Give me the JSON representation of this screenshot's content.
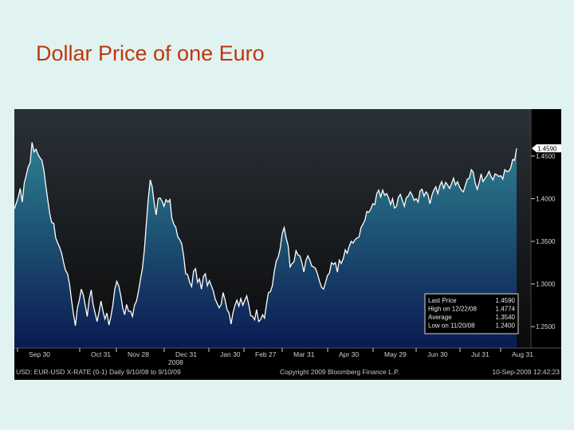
{
  "slide": {
    "title": "Dollar Price of one Euro"
  },
  "chart_data": {
    "type": "area",
    "title": "Dollar Price of one Euro",
    "x_ticks": [
      "Sep 30",
      "Oct 31",
      "Nov 28",
      "Dec 31",
      "Jan 30",
      "Feb 27",
      "Mar 31",
      "Apr 30",
      "May 29",
      "Jun 30",
      "Jul 31",
      "Aug 31"
    ],
    "x_tick_sublabel": {
      "tick": "Dec 31",
      "text": "2008"
    },
    "ylim": [
      1.225,
      1.505
    ],
    "y_ticks": [
      1.25,
      1.3,
      1.35,
      1.4,
      1.45
    ],
    "y_tick_labels": [
      "1.2500",
      "1.3000",
      "1.3500",
      "1.4000",
      "1.4500"
    ],
    "last_price_marker": "1.4590",
    "series": [
      {
        "values": [
          1.388,
          1.395,
          1.402,
          1.412,
          1.396,
          1.418,
          1.427,
          1.437,
          1.442,
          1.466,
          1.455,
          1.458,
          1.452,
          1.448,
          1.445,
          1.433,
          1.415,
          1.398,
          1.382,
          1.372,
          1.371,
          1.354,
          1.348,
          1.343,
          1.336,
          1.325,
          1.316,
          1.312,
          1.3,
          1.282,
          1.265,
          1.251,
          1.272,
          1.281,
          1.294,
          1.287,
          1.275,
          1.262,
          1.282,
          1.293,
          1.276,
          1.266,
          1.256,
          1.267,
          1.28,
          1.268,
          1.259,
          1.266,
          1.252,
          1.262,
          1.275,
          1.294,
          1.303,
          1.298,
          1.287,
          1.272,
          1.264,
          1.276,
          1.268,
          1.268,
          1.262,
          1.275,
          1.28,
          1.291,
          1.305,
          1.318,
          1.34,
          1.37,
          1.4,
          1.422,
          1.414,
          1.395,
          1.381,
          1.4,
          1.401,
          1.397,
          1.391,
          1.399,
          1.396,
          1.399,
          1.377,
          1.37,
          1.366,
          1.355,
          1.352,
          1.347,
          1.332,
          1.312,
          1.311,
          1.302,
          1.297,
          1.315,
          1.318,
          1.302,
          1.306,
          1.294,
          1.309,
          1.312,
          1.298,
          1.304,
          1.298,
          1.292,
          1.282,
          1.277,
          1.272,
          1.276,
          1.29,
          1.281,
          1.27,
          1.266,
          1.253,
          1.266,
          1.275,
          1.281,
          1.274,
          1.283,
          1.275,
          1.281,
          1.286,
          1.276,
          1.263,
          1.262,
          1.258,
          1.27,
          1.256,
          1.258,
          1.264,
          1.26,
          1.276,
          1.29,
          1.291,
          1.298,
          1.315,
          1.327,
          1.332,
          1.342,
          1.359,
          1.366,
          1.354,
          1.345,
          1.32,
          1.324,
          1.326,
          1.339,
          1.334,
          1.333,
          1.325,
          1.314,
          1.327,
          1.333,
          1.328,
          1.321,
          1.32,
          1.318,
          1.311,
          1.303,
          1.296,
          1.294,
          1.302,
          1.31,
          1.313,
          1.325,
          1.323,
          1.325,
          1.314,
          1.328,
          1.324,
          1.33,
          1.34,
          1.336,
          1.344,
          1.35,
          1.348,
          1.352,
          1.354,
          1.355,
          1.366,
          1.37,
          1.375,
          1.385,
          1.384,
          1.388,
          1.394,
          1.393,
          1.406,
          1.41,
          1.402,
          1.41,
          1.404,
          1.406,
          1.401,
          1.393,
          1.4,
          1.389,
          1.391,
          1.402,
          1.405,
          1.398,
          1.391,
          1.401,
          1.403,
          1.408,
          1.404,
          1.398,
          1.4,
          1.396,
          1.409,
          1.411,
          1.403,
          1.408,
          1.405,
          1.394,
          1.404,
          1.41,
          1.414,
          1.406,
          1.415,
          1.42,
          1.412,
          1.419,
          1.416,
          1.412,
          1.418,
          1.424,
          1.416,
          1.42,
          1.414,
          1.41,
          1.408,
          1.416,
          1.423,
          1.424,
          1.434,
          1.431,
          1.418,
          1.411,
          1.419,
          1.429,
          1.42,
          1.424,
          1.427,
          1.432,
          1.426,
          1.422,
          1.429,
          1.428,
          1.426,
          1.427,
          1.423,
          1.434,
          1.432,
          1.432,
          1.436,
          1.446,
          1.445,
          1.459
        ]
      }
    ],
    "legend": {
      "placement": "bottom-right",
      "rows": [
        {
          "label": "Last Price",
          "value": "1.4590"
        },
        {
          "label": "High on 12/22/08",
          "value": "1.4774"
        },
        {
          "label": "Average",
          "value": "1.3540"
        },
        {
          "label": "Low on 11/20/08",
          "value": "1.2400"
        }
      ]
    },
    "footer": {
      "left": "USD: EUR-USD X-RATE (0-1) Daily 9/10/08 to 9/10/09",
      "center": "Copyright 2009 Bloomberg Finance L.P.",
      "right": "10-Sep-2009 12:42:23"
    },
    "colors": {
      "background": "#000000",
      "fill_top": "#2d7f92",
      "fill_bottom": "#0b1a52",
      "line": "#ffffff",
      "title": "#c0360c",
      "slide_bg": "#e0f3f1"
    }
  }
}
